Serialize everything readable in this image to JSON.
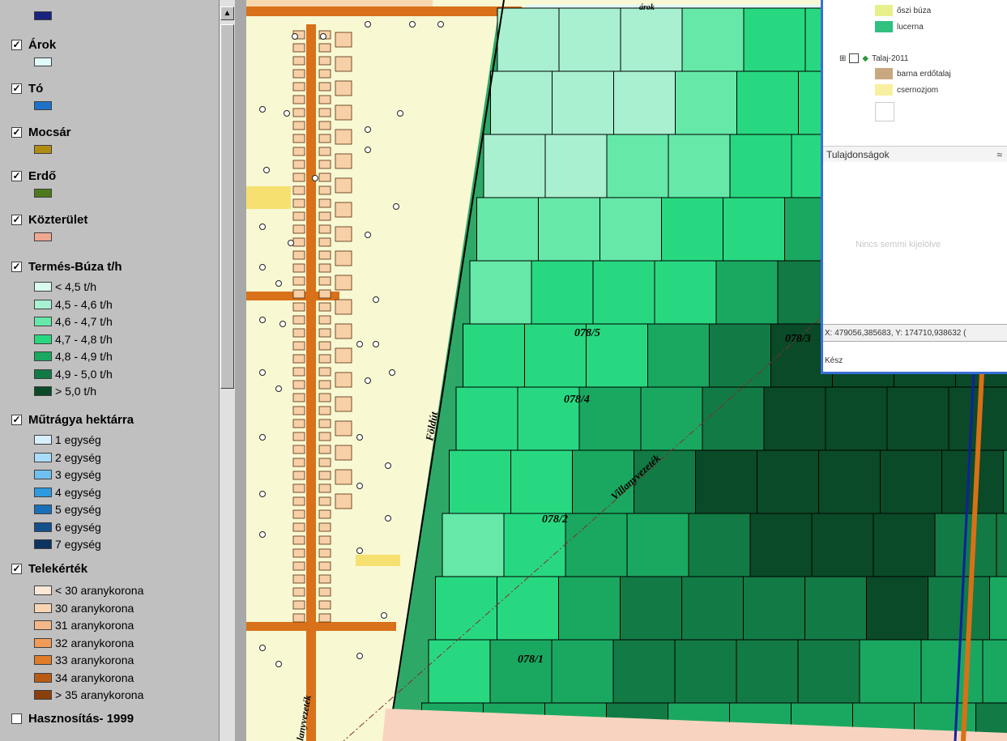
{
  "legend": {
    "top_swatch_color": "#1a237e",
    "layers": [
      {
        "name": "Árok",
        "checked": true,
        "swatch": "#e0fbfb"
      },
      {
        "name": "Tó",
        "checked": true,
        "swatch": "#1e73c8"
      },
      {
        "name": "Mocsár",
        "checked": true,
        "swatch": "#b08c14"
      },
      {
        "name": "Erdő",
        "checked": true,
        "swatch": "#4e7a1e"
      },
      {
        "name": "Közterület",
        "checked": true,
        "swatch": "#f0a890"
      }
    ],
    "yield_layer": {
      "name": "Termés-Búza t/h",
      "items": [
        {
          "label": "< 4,5 t/h",
          "color": "#d8fbee"
        },
        {
          "label": "4,5 - 4,6 t/h",
          "color": "#a8f0d0"
        },
        {
          "label": "4,6 - 4,7 t/h",
          "color": "#66e8a8"
        },
        {
          "label": "4,7 - 4,8 t/h",
          "color": "#28d880"
        },
        {
          "label": "4,8 - 4,9 t/h",
          "color": "#1aa860"
        },
        {
          "label": "4,9 - 5,0 t/h",
          "color": "#127a44"
        },
        {
          "label": "> 5,0  t/h",
          "color": "#0a4a28"
        }
      ]
    },
    "fert_layer": {
      "name": "Műtrágya hektárra",
      "items": [
        {
          "label": "1 egység",
          "color": "#d8f0fc"
        },
        {
          "label": "2 egység",
          "color": "#a8dcf8"
        },
        {
          "label": "3 egység",
          "color": "#6ec0f0"
        },
        {
          "label": "4 egység",
          "color": "#2e9ae0"
        },
        {
          "label": "5 egység",
          "color": "#1a70b8"
        },
        {
          "label": "6 egység",
          "color": "#14508a"
        },
        {
          "label": "7 egység",
          "color": "#0c3460"
        }
      ]
    },
    "value_layer": {
      "name": "Telekérték",
      "items": [
        {
          "label": "< 30 aranykorona",
          "color": "#fce8d8"
        },
        {
          "label": "30 aranykorona",
          "color": "#f8d4b4"
        },
        {
          "label": "31 aranykorona",
          "color": "#f4b888"
        },
        {
          "label": "32 aranykorona",
          "color": "#f09c58"
        },
        {
          "label": "33 aranykorona",
          "color": "#e07c28"
        },
        {
          "label": "34 aranykorona",
          "color": "#b85c14"
        },
        {
          "label": "> 35 aranykorona",
          "color": "#8a400c"
        }
      ]
    },
    "usage_layer": {
      "name": "Hasznosítás- 1999",
      "checked": false
    }
  },
  "map": {
    "labels": {
      "parcel_1": "078/1",
      "parcel_2": "078/2",
      "parcel_4": "078/4",
      "parcel_5": "078/5",
      "parcel_3": "078/3",
      "road": "Földút",
      "powerline": "Villanyvezeték",
      "powerline_2": "lanyvezeték",
      "arok": "árok"
    }
  },
  "overlay": {
    "items": [
      {
        "label": "őszi búza",
        "color": "#e8f08c"
      },
      {
        "label": "lucerna",
        "color": "#30c080"
      }
    ],
    "soil_layer": "Talaj-2011",
    "soil_items": [
      {
        "label": "barna erdőtalaj",
        "color": "#c8a880"
      },
      {
        "label": "csernozjom",
        "color": "#f8f0a0"
      }
    ],
    "properties_title": "Tulajdonságok",
    "empty_text": "Nincs semmi kijelölve",
    "coords": "X: 479056,385683, Y: 174710,938632 (",
    "status": "Kész"
  }
}
